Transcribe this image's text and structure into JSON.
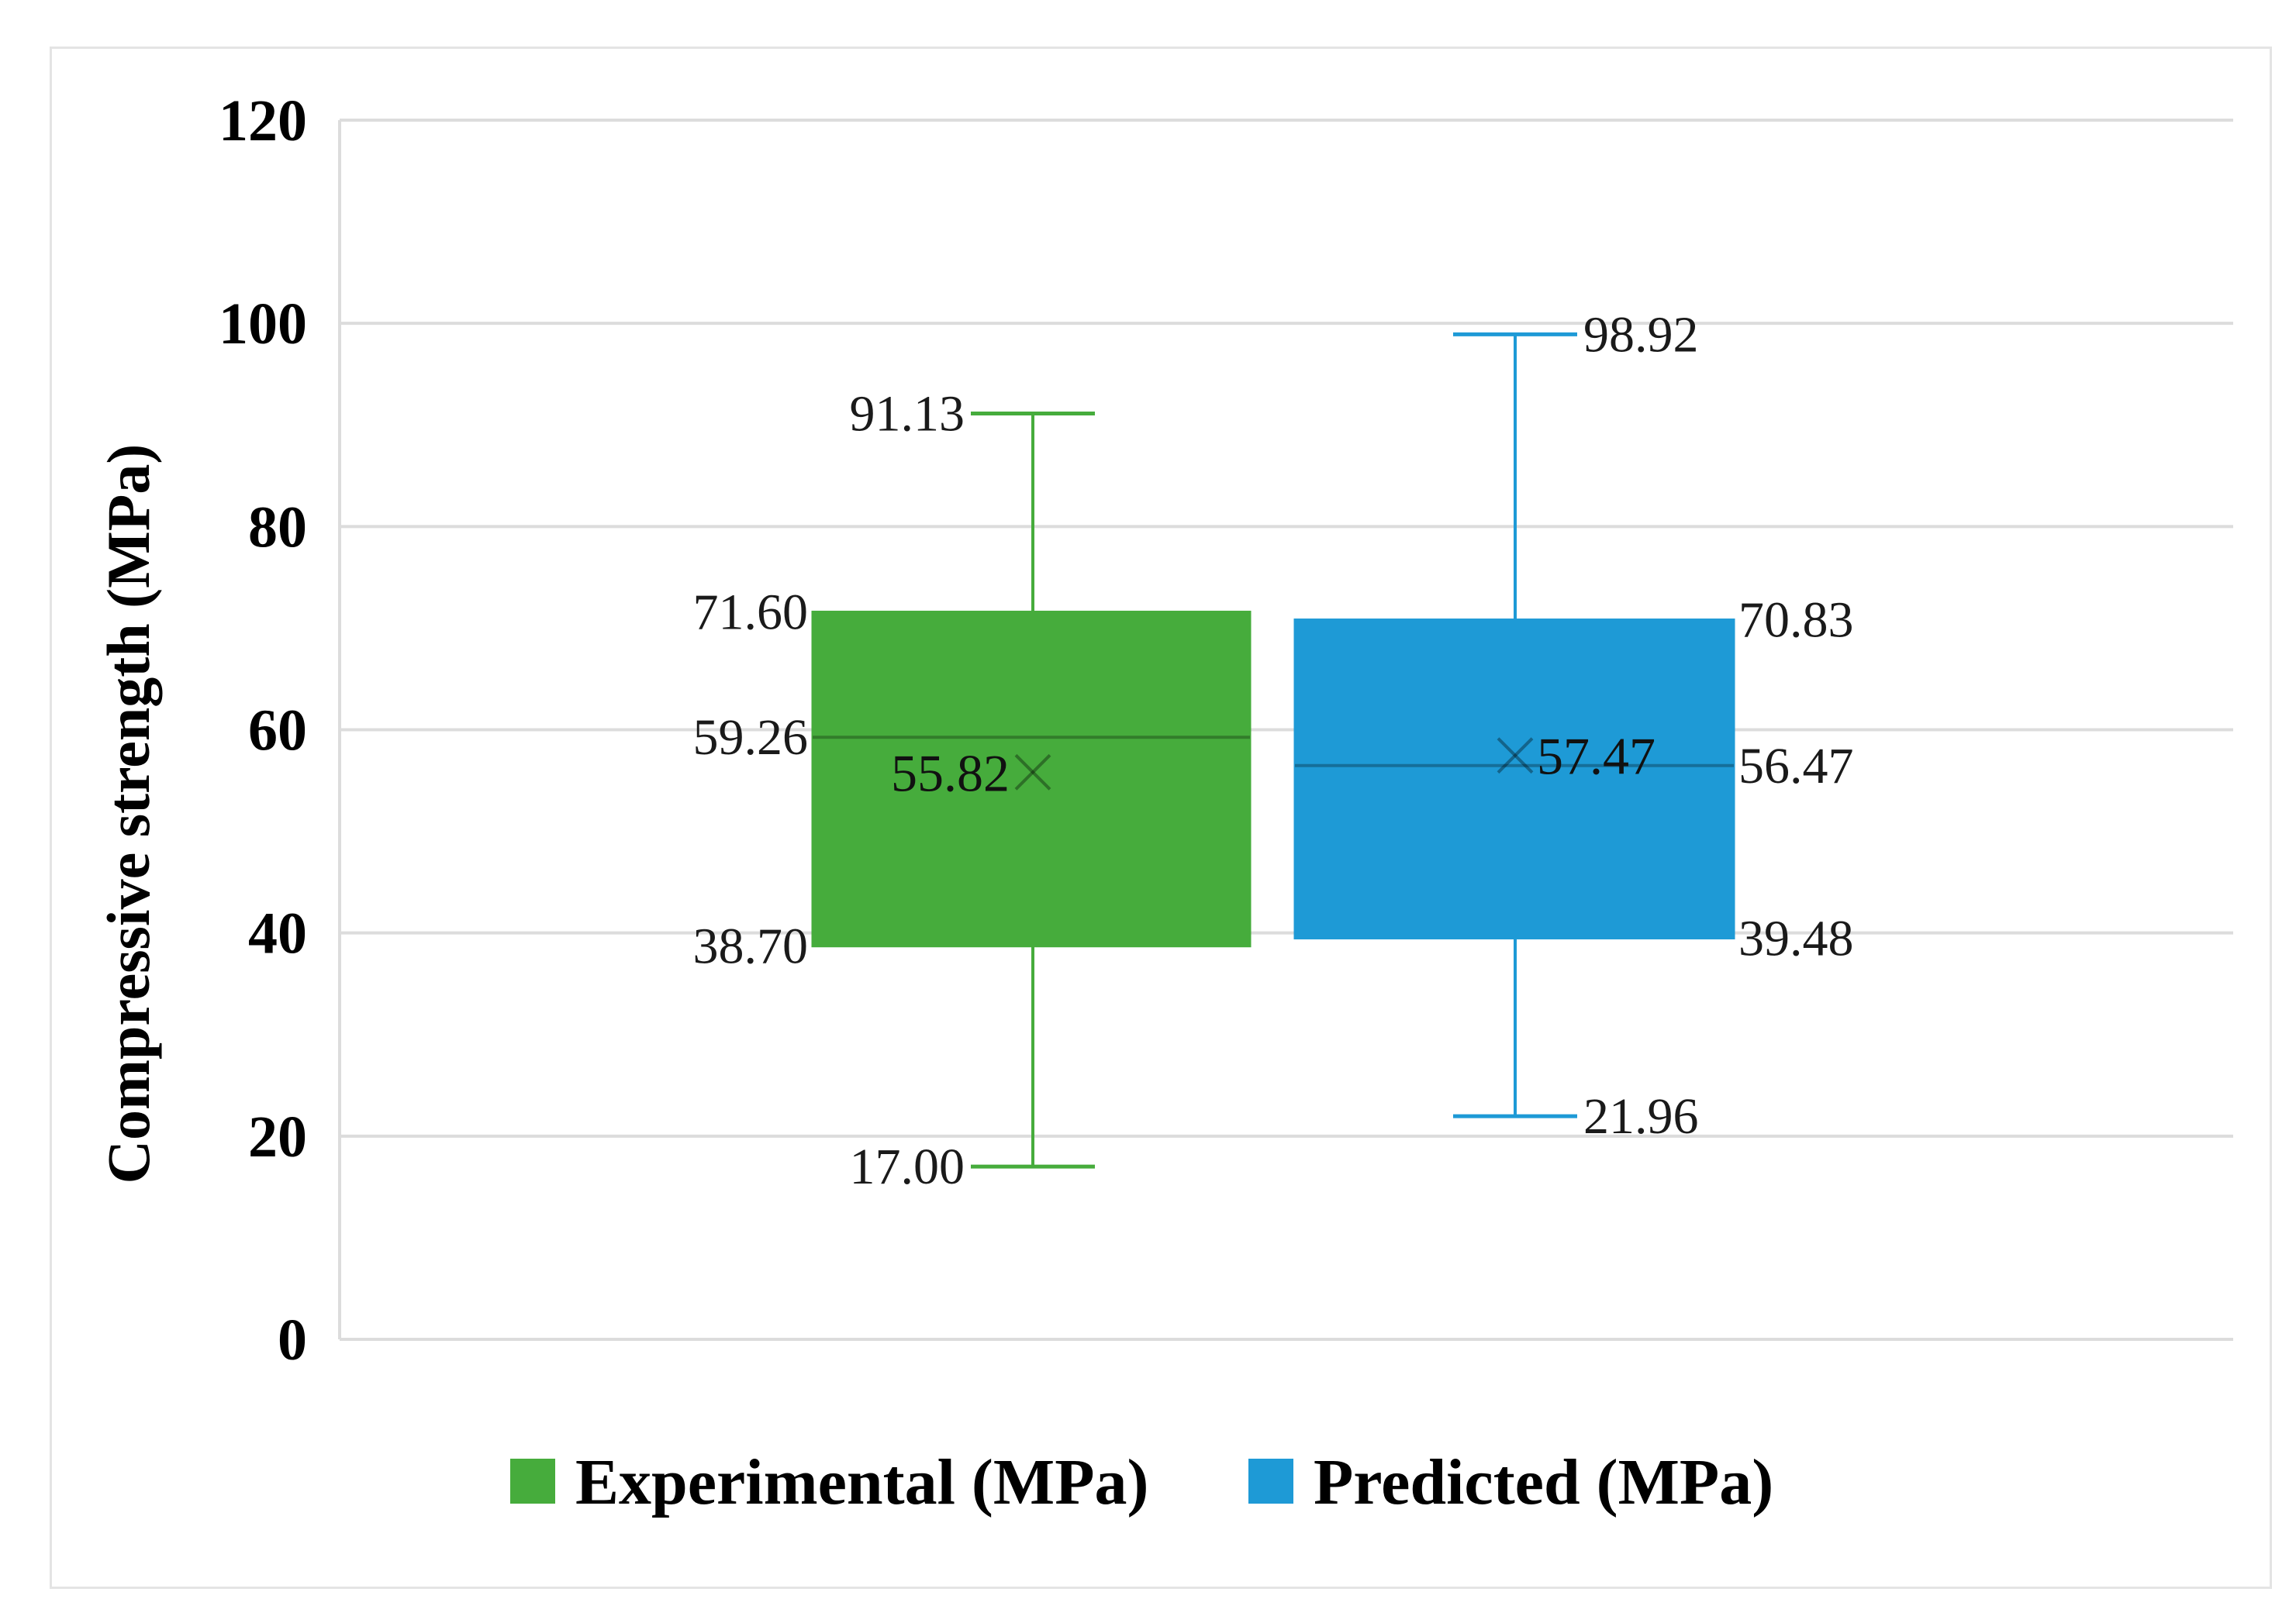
{
  "chart_data": {
    "type": "box",
    "title": "",
    "xlabel": "",
    "ylabel": "Compressive strength (MPa)",
    "ylim": [
      0,
      120
    ],
    "yticks": [
      0,
      20,
      40,
      60,
      80,
      100,
      120
    ],
    "grid": true,
    "legend_position": "bottom",
    "series": [
      {
        "name": "Experimental (MPa)",
        "color": "#46ac3c",
        "min": 17.0,
        "q1": 38.7,
        "median": 59.26,
        "mean": 55.82,
        "q3": 71.6,
        "max": 91.13,
        "labels": {
          "min": "17.00",
          "q1": "38.70",
          "median": "59.26",
          "mean": "55.82",
          "q3": "71.60",
          "max": "91.13"
        }
      },
      {
        "name": "Predicted (MPa)",
        "color": "#1e9ad6",
        "min": 21.96,
        "q1": 39.48,
        "median": 56.47,
        "mean": 57.47,
        "q3": 70.83,
        "max": 98.92,
        "labels": {
          "min": "21.96",
          "q1": "39.48",
          "median": "56.47",
          "mean": "57.47",
          "q3": "70.83",
          "max": "98.92"
        }
      }
    ]
  }
}
